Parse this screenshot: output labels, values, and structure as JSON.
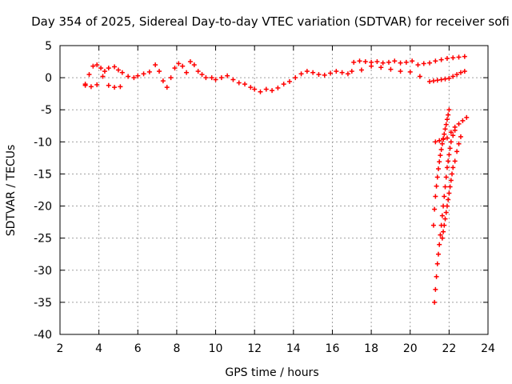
{
  "chart_data": {
    "type": "scatter",
    "title": "Day 354 of 2025, Sidereal Day-to-day VTEC variation (SDTVAR) for receiver sofi",
    "xlabel": "GPS time / hours",
    "ylabel": "SDTVAR / TECUs",
    "xlim": [
      2,
      24
    ],
    "ylim": [
      -40,
      5
    ],
    "xticks": [
      2,
      4,
      6,
      8,
      10,
      12,
      14,
      16,
      18,
      20,
      22,
      24
    ],
    "yticks": [
      5,
      0,
      -5,
      -10,
      -15,
      -20,
      -25,
      -30,
      -35,
      -40
    ],
    "grid": true,
    "marker": "+",
    "marker_color": "#ff0000",
    "series": [
      {
        "name": "SDTVAR",
        "x": [
          3.3,
          3.5,
          3.7,
          3.9,
          4.1,
          4.3,
          4.5,
          4.8,
          5.0,
          5.2,
          5.5,
          5.8,
          6.0,
          6.3,
          6.6,
          6.9,
          7.1,
          7.3,
          7.5,
          7.7,
          7.9,
          8.1,
          8.3,
          8.5,
          8.7,
          8.9,
          9.1,
          9.3,
          9.5,
          9.8,
          10.0,
          10.3,
          10.6,
          10.9,
          11.2,
          11.5,
          11.8,
          12.0,
          12.3,
          12.6,
          12.9,
          13.2,
          13.5,
          13.8,
          14.1,
          14.4,
          14.7,
          15.0,
          15.3,
          15.6,
          15.9,
          16.2,
          16.5,
          16.8,
          17.1,
          17.4,
          17.7,
          18.0,
          18.3,
          18.6,
          18.9,
          19.2,
          19.5,
          19.8,
          20.1,
          20.4,
          20.7,
          21.0,
          21.3,
          21.6,
          21.9,
          22.2,
          22.5,
          22.8,
          3.3,
          3.6,
          3.9,
          4.2,
          4.5,
          4.8,
          5.1,
          17.0,
          17.5,
          18.0,
          18.5,
          19.0,
          19.5,
          20.0,
          20.5,
          21.0,
          21.2,
          21.4,
          21.6,
          21.8,
          22.0,
          22.2,
          22.4,
          22.6,
          22.8,
          21.3,
          21.5,
          21.7,
          21.9,
          22.1,
          22.3,
          22.5,
          22.7,
          22.9,
          21.2,
          21.25,
          21.3,
          21.35,
          21.4,
          21.45,
          21.5,
          21.55,
          21.6,
          21.65,
          21.7,
          21.75,
          21.8,
          21.85,
          21.9,
          21.95,
          22.0,
          21.25,
          21.3,
          21.35,
          21.4,
          21.45,
          21.5,
          21.55,
          21.6,
          21.65,
          21.7,
          21.75,
          21.8,
          21.85,
          21.9,
          21.95,
          22.0,
          22.05,
          22.1,
          22.2,
          22.3,
          21.65,
          21.7,
          21.75,
          21.8,
          21.85,
          21.9,
          21.95,
          22.0,
          22.05,
          22.1,
          22.15,
          22.2,
          22.3,
          22.4,
          22.5,
          22.6
        ],
        "y": [
          -1.0,
          0.5,
          1.8,
          2.0,
          1.5,
          1.0,
          1.5,
          1.7,
          1.2,
          0.8,
          0.2,
          0.0,
          0.3,
          0.6,
          0.9,
          2.0,
          1.0,
          -0.5,
          -1.5,
          0.0,
          1.5,
          2.2,
          1.8,
          0.8,
          2.5,
          2.0,
          1.0,
          0.5,
          0.0,
          0.0,
          -0.3,
          0.0,
          0.3,
          -0.3,
          -0.8,
          -1.0,
          -1.5,
          -1.8,
          -2.2,
          -1.8,
          -2.0,
          -1.6,
          -1.0,
          -0.6,
          0.0,
          0.6,
          1.0,
          0.8,
          0.5,
          0.4,
          0.7,
          1.0,
          0.8,
          0.6,
          2.4,
          2.6,
          2.5,
          2.4,
          2.5,
          2.3,
          2.4,
          2.6,
          2.3,
          2.4,
          2.6,
          2.0,
          2.2,
          2.3,
          2.6,
          2.8,
          3.0,
          3.1,
          3.2,
          3.3,
          -1.2,
          -1.4,
          -1.1,
          0.2,
          -1.2,
          -1.5,
          -1.4,
          1.0,
          1.2,
          1.8,
          1.6,
          1.3,
          1.0,
          0.9,
          0.2,
          -0.6,
          -0.5,
          -0.4,
          -0.3,
          -0.2,
          -0.1,
          0.2,
          0.5,
          0.8,
          1.0,
          -10.0,
          -9.8,
          -9.6,
          -9.4,
          -8.5,
          -7.7,
          -7.2,
          -6.7,
          -6.2,
          -23.0,
          -20.5,
          -18.5,
          -16.9,
          -15.5,
          -14.2,
          -13.1,
          -12.1,
          -11.2,
          -10.3,
          -9.5,
          -8.8,
          -8.0,
          -7.3,
          -6.5,
          -5.8,
          -5.0,
          -35.0,
          -33.0,
          -31.0,
          -29.0,
          -27.5,
          -26.0,
          -24.5,
          -23.0,
          -21.5,
          -20.0,
          -18.5,
          -17.0,
          -15.5,
          -14.0,
          -13.0,
          -12.0,
          -11.0,
          -10.0,
          -9.0,
          -8.2,
          -25.0,
          -24.0,
          -23.0,
          -22.0,
          -21.0,
          -20.0,
          -19.0,
          -18.0,
          -17.0,
          -16.0,
          -15.0,
          -14.0,
          -13.0,
          -11.5,
          -10.3,
          -9.2
        ]
      }
    ]
  }
}
